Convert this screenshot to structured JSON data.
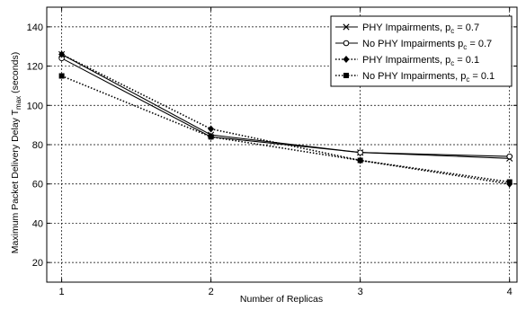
{
  "chart_data": {
    "type": "line",
    "xlabel": "Number of Replicas",
    "ylabel": {
      "main": "Maximum Packet Delivery Delay T",
      "subscript": "max",
      "unit": " (seconds)"
    },
    "x": [
      1,
      2,
      3,
      4
    ],
    "xlim": [
      0.9,
      4.05
    ],
    "ylim": [
      10,
      150
    ],
    "xticks": [
      1,
      2,
      3,
      4
    ],
    "yticks": [
      20,
      40,
      60,
      80,
      100,
      120,
      140
    ],
    "grid": true,
    "legend_position": "top-right",
    "series": [
      {
        "name": "PHY Impairments, p",
        "sub": "c",
        "suffix": " = 0.7",
        "values": [
          126,
          85,
          76,
          73
        ],
        "marker": "x",
        "dash": "solid"
      },
      {
        "name": "No PHY Impairments p",
        "sub": "c",
        "suffix": " = 0.7",
        "values": [
          124,
          84,
          76,
          74
        ],
        "marker": "circle-open",
        "dash": "solid"
      },
      {
        "name": "PHY Impairments, p",
        "sub": "c",
        "suffix": " = 0.1",
        "values": [
          126,
          88,
          72,
          60
        ],
        "marker": "diamond",
        "dash": "dotted"
      },
      {
        "name": "No PHY Impairments, p",
        "sub": "c",
        "suffix": " = 0.1",
        "values": [
          115,
          84,
          72,
          61
        ],
        "marker": "square",
        "dash": "dotted"
      }
    ]
  }
}
